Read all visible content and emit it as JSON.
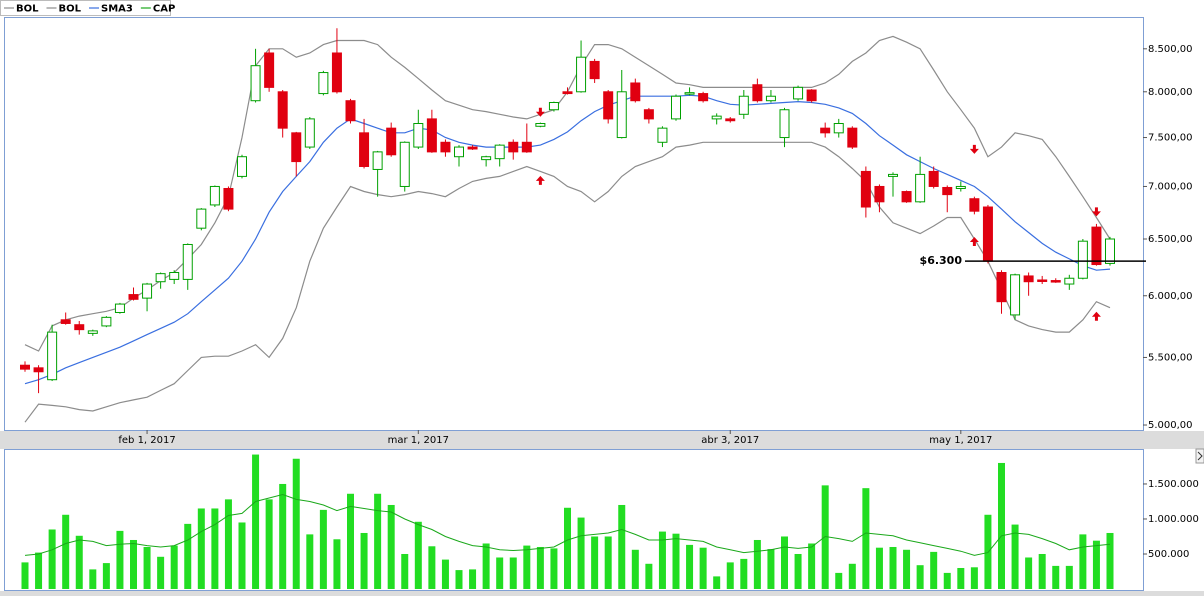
{
  "chart_data": [
    {
      "type": "candlestick",
      "categories": [
        null,
        null,
        null,
        null,
        null,
        null,
        null,
        null,
        null,
        "feb 1, 2017",
        null,
        null,
        null,
        null,
        null,
        null,
        null,
        null,
        null,
        null,
        null,
        null,
        null,
        null,
        null,
        null,
        null,
        null,
        null,
        "mar 1, 2017",
        null,
        null,
        null,
        null,
        null,
        null,
        null,
        null,
        null,
        null,
        null,
        null,
        null,
        null,
        null,
        null,
        null,
        null,
        null,
        null,
        null,
        null,
        "abr 3, 2017",
        null,
        null,
        null,
        null,
        null,
        null,
        null,
        null,
        null,
        null,
        null,
        null,
        null,
        null,
        null,
        null,
        "may 1, 2017",
        null,
        null,
        null,
        null,
        null,
        null,
        null,
        null,
        null,
        null,
        null
      ],
      "open": [
        5440,
        5420,
        5330,
        5800,
        5760,
        5690,
        5750,
        5860,
        6010,
        5980,
        6120,
        6140,
        6140,
        6600,
        6820,
        6980,
        7100,
        7900,
        8450,
        8000,
        7550,
        7400,
        7980,
        8450,
        7900,
        7550,
        7170,
        7600,
        7000,
        7400,
        7700,
        7450,
        7300,
        7400,
        7270,
        7280,
        7450,
        7450,
        7620,
        7800,
        8000,
        8000,
        8350,
        8000,
        7500,
        8100,
        7800,
        7450,
        7700,
        7980,
        7980,
        7700,
        7700,
        7750,
        8080,
        7900,
        7500,
        7920,
        8020,
        7600,
        7550,
        7600,
        7150,
        7000,
        7100,
        6950,
        6850,
        7150,
        6990,
        6980,
        6880,
        6800,
        6200,
        5840,
        6170,
        6135,
        6130,
        6100,
        6150,
        6610,
        6280
      ],
      "high": [
        5470,
        5440,
        5760,
        5860,
        5790,
        5720,
        5830,
        5940,
        6070,
        6110,
        6200,
        6220,
        6460,
        6790,
        7010,
        7000,
        7320,
        8500,
        8500,
        8020,
        7560,
        7720,
        8240,
        8750,
        7920,
        7700,
        7360,
        7660,
        7460,
        7800,
        7800,
        7480,
        7420,
        7420,
        7310,
        7430,
        7480,
        7650,
        7660,
        7890,
        8050,
        8600,
        8380,
        8020,
        8250,
        8150,
        7820,
        7620,
        7970,
        8050,
        8000,
        7760,
        7720,
        8020,
        8150,
        8020,
        7820,
        8070,
        8030,
        7660,
        7700,
        7620,
        7200,
        7020,
        7140,
        6960,
        7300,
        7200,
        7010,
        7050,
        6900,
        6820,
        6220,
        6190,
        6200,
        6170,
        6150,
        6180,
        6500,
        6640,
        6520
      ],
      "low": [
        5390,
        5230,
        5320,
        5760,
        5680,
        5670,
        5740,
        5850,
        5960,
        5870,
        6060,
        6100,
        6050,
        6580,
        6800,
        6760,
        7080,
        7880,
        8000,
        7500,
        7100,
        7380,
        7960,
        7980,
        7650,
        7180,
        6900,
        7300,
        6950,
        7380,
        7340,
        7300,
        7200,
        7370,
        7200,
        7200,
        7270,
        7340,
        7610,
        7780,
        7970,
        7990,
        8100,
        7650,
        7490,
        7880,
        7650,
        7400,
        7680,
        7960,
        7880,
        7640,
        7660,
        7700,
        7880,
        7880,
        7400,
        7900,
        7880,
        7500,
        7500,
        7380,
        6700,
        6750,
        6900,
        6840,
        6840,
        6980,
        6750,
        6950,
        6730,
        6280,
        5850,
        5800,
        6000,
        6100,
        6110,
        6050,
        6140,
        6260,
        6260
      ],
      "close": [
        5410,
        5390,
        5700,
        5770,
        5720,
        5710,
        5820,
        5930,
        5970,
        6100,
        6190,
        6200,
        6450,
        6780,
        7000,
        6780,
        7300,
        8300,
        8050,
        7600,
        7250,
        7700,
        8220,
        8000,
        7680,
        7200,
        7350,
        7320,
        7450,
        7650,
        7350,
        7350,
        7400,
        7380,
        7300,
        7420,
        7350,
        7350,
        7650,
        7880,
        7980,
        8400,
        8150,
        7700,
        8000,
        7900,
        7700,
        7600,
        7950,
        7990,
        7900,
        7730,
        7680,
        7950,
        7900,
        7950,
        7800,
        8050,
        7900,
        7550,
        7650,
        7400,
        6800,
        6850,
        7120,
        6850,
        7120,
        7000,
        6920,
        7000,
        6760,
        6300,
        5950,
        6180,
        6120,
        6130,
        6120,
        6150,
        6480,
        6270,
        6500
      ],
      "up_color": "#00a000",
      "down_color": "#e00010",
      "series": [
        {
          "name": "BOL",
          "color": "#8c8c8c",
          "values": [
            5600,
            5550,
            5750,
            5800,
            5830,
            5850,
            5870,
            5900,
            5980,
            6050,
            6130,
            6200,
            6320,
            6450,
            6650,
            6900,
            7500,
            8300,
            8500,
            8500,
            8400,
            8450,
            8550,
            8600,
            8600,
            8600,
            8550,
            8400,
            8280,
            8150,
            8020,
            7900,
            7850,
            7800,
            7780,
            7750,
            7720,
            7700,
            7750,
            7800,
            8000,
            8300,
            8550,
            8550,
            8500,
            8400,
            8300,
            8200,
            8100,
            8080,
            8050,
            8050,
            8050,
            8050,
            8050,
            8050,
            8050,
            8050,
            8050,
            8100,
            8200,
            8350,
            8450,
            8600,
            8650,
            8580,
            8500,
            8250,
            8000,
            7800,
            7600,
            7300,
            7400,
            7550,
            7520,
            7480,
            7300,
            7100,
            6900,
            6700,
            6500
          ]
        },
        {
          "name": "BOL",
          "color": "#8c8c8c",
          "values": [
            5020,
            5150,
            5140,
            5130,
            5110,
            5100,
            5130,
            5160,
            5180,
            5200,
            5250,
            5300,
            5400,
            5500,
            5510,
            5510,
            5550,
            5600,
            5500,
            5650,
            5900,
            6300,
            6600,
            6800,
            7000,
            6950,
            6920,
            6900,
            6920,
            6950,
            6930,
            6900,
            6980,
            7050,
            7080,
            7100,
            7150,
            7200,
            7150,
            7100,
            7000,
            6950,
            6850,
            6950,
            7100,
            7200,
            7250,
            7300,
            7400,
            7420,
            7450,
            7450,
            7450,
            7450,
            7450,
            7450,
            7450,
            7450,
            7450,
            7400,
            7300,
            7180,
            7050,
            6800,
            6650,
            6600,
            6550,
            6620,
            6700,
            6700,
            6500,
            6300,
            6050,
            5800,
            5750,
            5720,
            5700,
            5700,
            5800,
            5950,
            5900
          ]
        },
        {
          "name": "SMA3",
          "color": "#3a6fe0",
          "values": [
            5300,
            5330,
            5370,
            5420,
            5460,
            5500,
            5540,
            5580,
            5630,
            5680,
            5730,
            5780,
            5850,
            5950,
            6050,
            6150,
            6300,
            6500,
            6750,
            6950,
            7100,
            7250,
            7450,
            7600,
            7700,
            7650,
            7600,
            7550,
            7550,
            7600,
            7580,
            7500,
            7450,
            7420,
            7400,
            7400,
            7400,
            7400,
            7420,
            7480,
            7560,
            7680,
            7780,
            7850,
            7900,
            7950,
            7950,
            7950,
            7950,
            7960,
            7950,
            7900,
            7860,
            7850,
            7860,
            7870,
            7880,
            7890,
            7880,
            7860,
            7820,
            7760,
            7650,
            7520,
            7420,
            7320,
            7250,
            7180,
            7120,
            7060,
            7000,
            6900,
            6780,
            6660,
            6560,
            6460,
            6380,
            6320,
            6260,
            6220,
            6230
          ]
        }
      ],
      "signals": {
        "sell": {
          "x": [
            38,
            70,
            79
          ],
          "values": [
            7745,
            7350,
            6730
          ],
          "color": "#e00010"
        },
        "buy": {
          "x": [
            38,
            70,
            79
          ],
          "values": [
            7085,
            6500,
            5850
          ],
          "color": "#e00010"
        }
      },
      "level": {
        "value": 6300,
        "label": "$6.300"
      },
      "ylim": [
        4965,
        8890
      ],
      "log": true,
      "yticks": [
        {
          "value": 5000,
          "label": "5.000,00"
        },
        {
          "value": 5500,
          "label": "5.500,00"
        },
        {
          "value": 6000,
          "label": "6.000,00"
        },
        {
          "value": 6500,
          "label": "6.500,00"
        },
        {
          "value": 7000,
          "label": "7.000,00"
        },
        {
          "value": 7500,
          "label": "7.500,00"
        },
        {
          "value": 8000,
          "label": "8.000,00"
        },
        {
          "value": 8500,
          "label": "8.500,00"
        }
      ],
      "legend": "top-left"
    },
    {
      "type": "bar",
      "values": [
        380000,
        520000,
        850000,
        1060000,
        760000,
        280000,
        370000,
        830000,
        700000,
        600000,
        460000,
        620000,
        930000,
        1150000,
        1150000,
        1280000,
        950000,
        1920000,
        1280000,
        1500000,
        1860000,
        780000,
        1130000,
        710000,
        1360000,
        800000,
        1360000,
        1200000,
        500000,
        960000,
        610000,
        420000,
        270000,
        280000,
        650000,
        450000,
        450000,
        620000,
        600000,
        580000,
        1160000,
        1020000,
        750000,
        750000,
        1200000,
        560000,
        360000,
        820000,
        790000,
        630000,
        590000,
        180000,
        380000,
        430000,
        700000,
        570000,
        750000,
        500000,
        650000,
        1480000,
        230000,
        360000,
        1440000,
        590000,
        600000,
        560000,
        340000,
        530000,
        230000,
        300000,
        310000,
        1060000,
        1800000,
        920000,
        450000,
        500000,
        330000,
        330000,
        780000,
        690000,
        800000
      ],
      "color": "#22dd22",
      "series": [
        {
          "name": "CAP",
          "color": "#1aa81a",
          "values": [
            480000,
            500000,
            560000,
            650000,
            700000,
            680000,
            620000,
            640000,
            650000,
            620000,
            600000,
            620000,
            700000,
            820000,
            920000,
            1050000,
            1080000,
            1250000,
            1300000,
            1350000,
            1280000,
            1250000,
            1200000,
            1120000,
            1180000,
            1150000,
            1120000,
            1100000,
            1000000,
            920000,
            850000,
            750000,
            680000,
            620000,
            600000,
            560000,
            550000,
            560000,
            580000,
            600000,
            700000,
            760000,
            780000,
            800000,
            850000,
            780000,
            700000,
            700000,
            720000,
            700000,
            680000,
            600000,
            560000,
            520000,
            540000,
            560000,
            600000,
            580000,
            600000,
            750000,
            720000,
            680000,
            800000,
            780000,
            760000,
            700000,
            660000,
            620000,
            580000,
            540000,
            480000,
            520000,
            760000,
            800000,
            780000,
            720000,
            650000,
            560000,
            600000,
            620000,
            640000
          ]
        }
      ],
      "ylim": [
        0,
        1985000
      ],
      "yticks": [
        {
          "value": 500000,
          "label": "500.000"
        },
        {
          "value": 1000000,
          "label": "1.000.000"
        },
        {
          "value": 1500000,
          "label": "1.500.000"
        }
      ]
    }
  ]
}
